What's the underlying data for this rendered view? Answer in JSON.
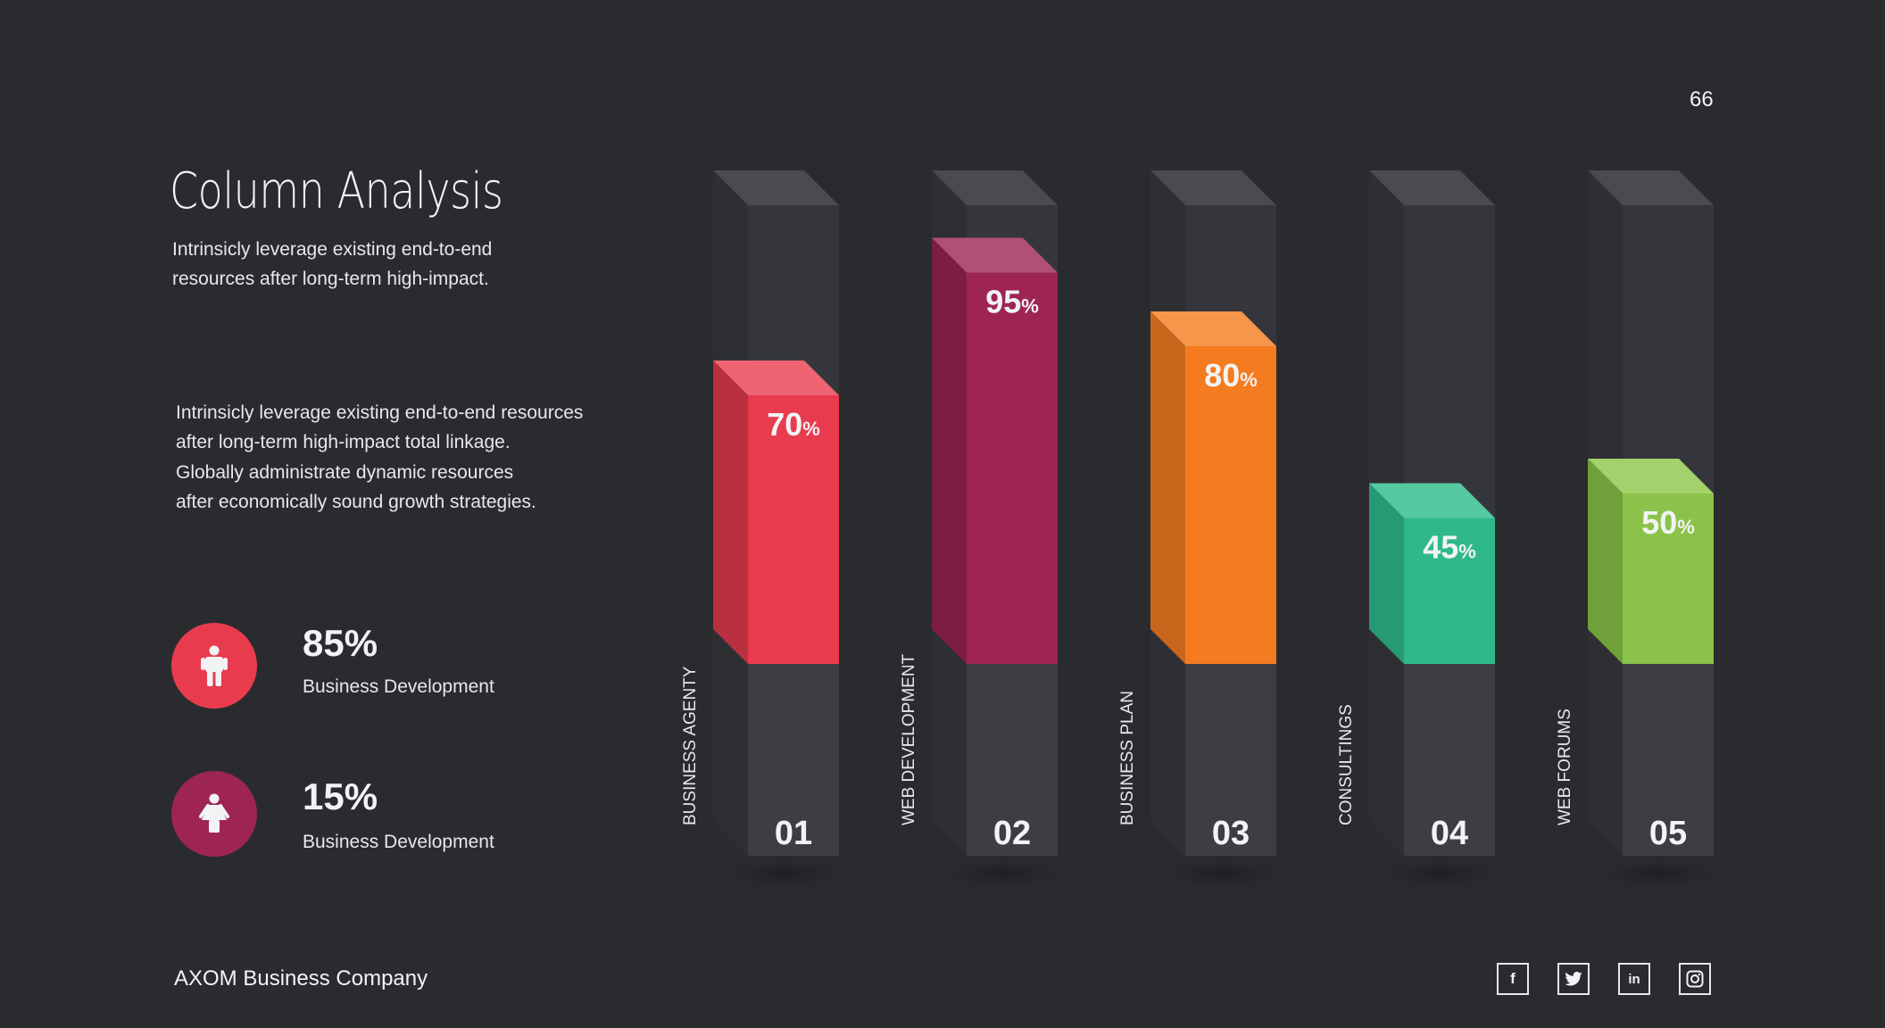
{
  "page_number": "66",
  "title": "Column Analysis",
  "subtitle_lines": [
    "Intrinsicly leverage existing end-to-end",
    "resources after long-term high-impact."
  ],
  "paragraph_lines": [
    "Intrinsicly leverage existing end-to-end resources",
    "after long-term high-impact total linkage.",
    "Globally administrate dynamic resources",
    "after economically sound growth strategies."
  ],
  "stats": [
    {
      "value": "85%",
      "label": "Business Development",
      "icon": "male-icon",
      "color": "#e83c4e"
    },
    {
      "value": "15%",
      "label": "Business Development",
      "icon": "female-icon",
      "color": "#9e2553"
    }
  ],
  "footer": "AXOM Business Company",
  "social": [
    {
      "name": "facebook",
      "glyph": "f"
    },
    {
      "name": "twitter",
      "glyph": "🐦"
    },
    {
      "name": "linkedin",
      "glyph": "in"
    },
    {
      "name": "instagram",
      "glyph": "◎"
    }
  ],
  "chart_data": {
    "type": "bar",
    "title": "",
    "categories": [
      "BUSINESS AGENTY",
      "WEB DEVELOPMENT",
      "BUSINESS PLAN",
      "CONSULTINGS",
      "WEB FORUMS"
    ],
    "numbers": [
      "01",
      "02",
      "03",
      "04",
      "05"
    ],
    "values": [
      70,
      95,
      80,
      45,
      50
    ],
    "value_labels": [
      "70",
      "95",
      "80",
      "45",
      "50"
    ],
    "unit": "%",
    "ylim": [
      0,
      100
    ],
    "colors": [
      {
        "front": "#e83c4e",
        "side": "#b8303f",
        "top": "#ee6472"
      },
      {
        "front": "#9e2553",
        "side": "#7d1d43",
        "top": "#b05074"
      },
      {
        "front": "#f47b20",
        "side": "#c8661b",
        "top": "#f5964b"
      },
      {
        "front": "#2fb98b",
        "side": "#269b73",
        "top": "#55c9a0"
      },
      {
        "front": "#8bc34a",
        "side": "#6fa03a",
        "top": "#a3d16b"
      }
    ]
  }
}
